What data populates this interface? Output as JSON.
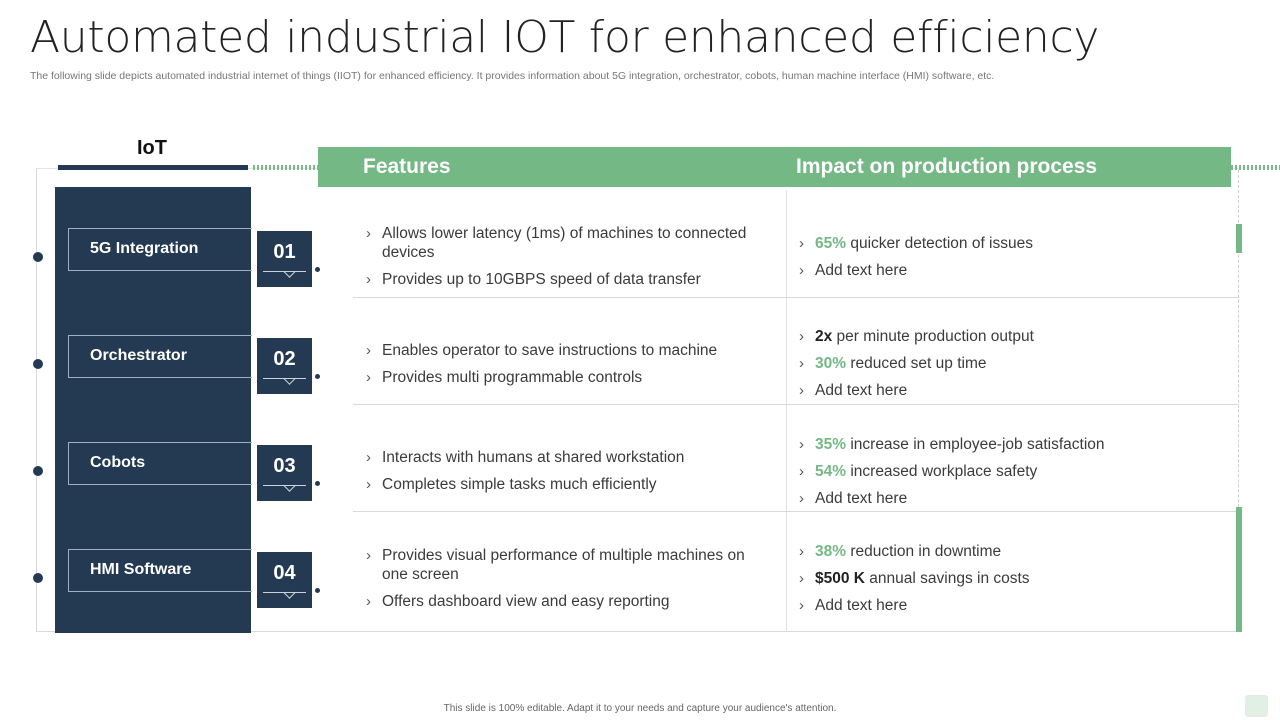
{
  "slide": {
    "title": "Automated industrial IOT for enhanced efficiency",
    "subtitle": "The following slide depicts automated industrial internet of things (IIOT) for enhanced efficiency. It provides information about 5G integration, orchestrator, cobots, human machine interface (HMI) software, etc.",
    "footer": "This slide is 100% editable. Adapt it to your needs and capture your audience's attention."
  },
  "iot_label": "IoT",
  "table": {
    "features_header": "Features",
    "impact_header": "Impact on production process"
  },
  "colors": {
    "accent_green": "#74b886",
    "navy": "#243a52"
  },
  "rows": [
    {
      "label": "5G Integration",
      "num": "01",
      "features": [
        "Allows lower latency (1ms) of machines to connected devices",
        "Provides up to 10GBPS speed of data transfer"
      ],
      "impact": [
        {
          "hl": "65%",
          "text": " quicker detection of issues"
        },
        {
          "hl": "",
          "text": "Add text here"
        }
      ]
    },
    {
      "label": "Orchestrator",
      "num": "02",
      "features": [
        "Enables operator to save instructions to machine",
        "Provides multi programmable controls"
      ],
      "impact": [
        {
          "hl": "2x",
          "text": " per minute production output"
        },
        {
          "hl": "30%",
          "text": " reduced set up time"
        },
        {
          "hl": "",
          "text": "Add text here"
        }
      ]
    },
    {
      "label": "Cobots",
      "num": "03",
      "features": [
        "Interacts with humans at shared workstation",
        "Completes simple tasks much efficiently"
      ],
      "impact": [
        {
          "hl": "35%",
          "text": " increase in employee-job satisfaction"
        },
        {
          "hl": "54%",
          "text": " increased workplace safety"
        },
        {
          "hl": "",
          "text": "Add text here"
        }
      ]
    },
    {
      "label": "HMI Software",
      "num": "04",
      "features": [
        "Provides visual performance of multiple machines on one screen",
        "Offers dashboard view and easy reporting"
      ],
      "impact": [
        {
          "hl": "38%",
          "text": " reduction in downtime"
        },
        {
          "hl": "$500 K",
          "text": " annual savings in costs"
        },
        {
          "hl": "",
          "text": "Add text here"
        }
      ]
    }
  ]
}
